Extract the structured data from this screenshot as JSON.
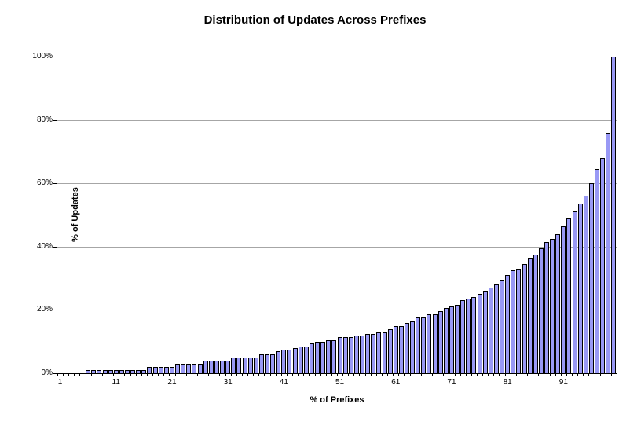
{
  "chart": {
    "title": "Distribution of Updates Across Prefixes",
    "xlabel": "% of Prefixes",
    "ylabel": "% of Updates"
  },
  "chart_data": {
    "type": "bar",
    "title": "Distribution of Updates Across Prefixes",
    "xlabel": "% of Prefixes",
    "ylabel": "% of Updates",
    "x_range": [
      1,
      100
    ],
    "ylim": [
      0,
      100
    ],
    "grid": true,
    "legend": false,
    "y_ticks": [
      {
        "value": 0,
        "label": "0%"
      },
      {
        "value": 20,
        "label": "20%"
      },
      {
        "value": 40,
        "label": "40%"
      },
      {
        "value": 60,
        "label": "60%"
      },
      {
        "value": 80,
        "label": "80%"
      },
      {
        "value": 100,
        "label": "100%"
      }
    ],
    "x_ticks": [
      {
        "value": 1,
        "label": "1"
      },
      {
        "value": 11,
        "label": "11"
      },
      {
        "value": 21,
        "label": "21"
      },
      {
        "value": 31,
        "label": "31"
      },
      {
        "value": 41,
        "label": "41"
      },
      {
        "value": 51,
        "label": "51"
      },
      {
        "value": 61,
        "label": "61"
      },
      {
        "value": 71,
        "label": "71"
      },
      {
        "value": 81,
        "label": "81"
      },
      {
        "value": 91,
        "label": "91"
      }
    ],
    "values": [
      0,
      0,
      0,
      0,
      0,
      1,
      1,
      1,
      1,
      1,
      1,
      1,
      1,
      1,
      1,
      1,
      2,
      2,
      2,
      2,
      2,
      3,
      3,
      3,
      3,
      3,
      4,
      4,
      4,
      4,
      4,
      5,
      5,
      5,
      5,
      5,
      6,
      6,
      6,
      7,
      7.5,
      7.5,
      8,
      8.5,
      8.5,
      9.5,
      10,
      10,
      10.5,
      10.5,
      11.5,
      11.5,
      11.5,
      12,
      12,
      12.5,
      12.5,
      13,
      13,
      14,
      15,
      15,
      16,
      16.5,
      17.5,
      17.5,
      18.5,
      18.5,
      19.5,
      20.5,
      21,
      21.5,
      23,
      23.5,
      24,
      25,
      26,
      27,
      28,
      29.5,
      31,
      32.5,
      33,
      34.5,
      36.5,
      37.5,
      39.5,
      41.5,
      42.5,
      44,
      46.5,
      49,
      51,
      53.5,
      56,
      60,
      64.5,
      68,
      76,
      100
    ],
    "colors": {
      "bar_fill": "#9999F5",
      "bar_border": "#000000",
      "gridline": "#a6a6a6",
      "axis": "#000000",
      "text": "#000000",
      "background": "#ffffff"
    }
  }
}
